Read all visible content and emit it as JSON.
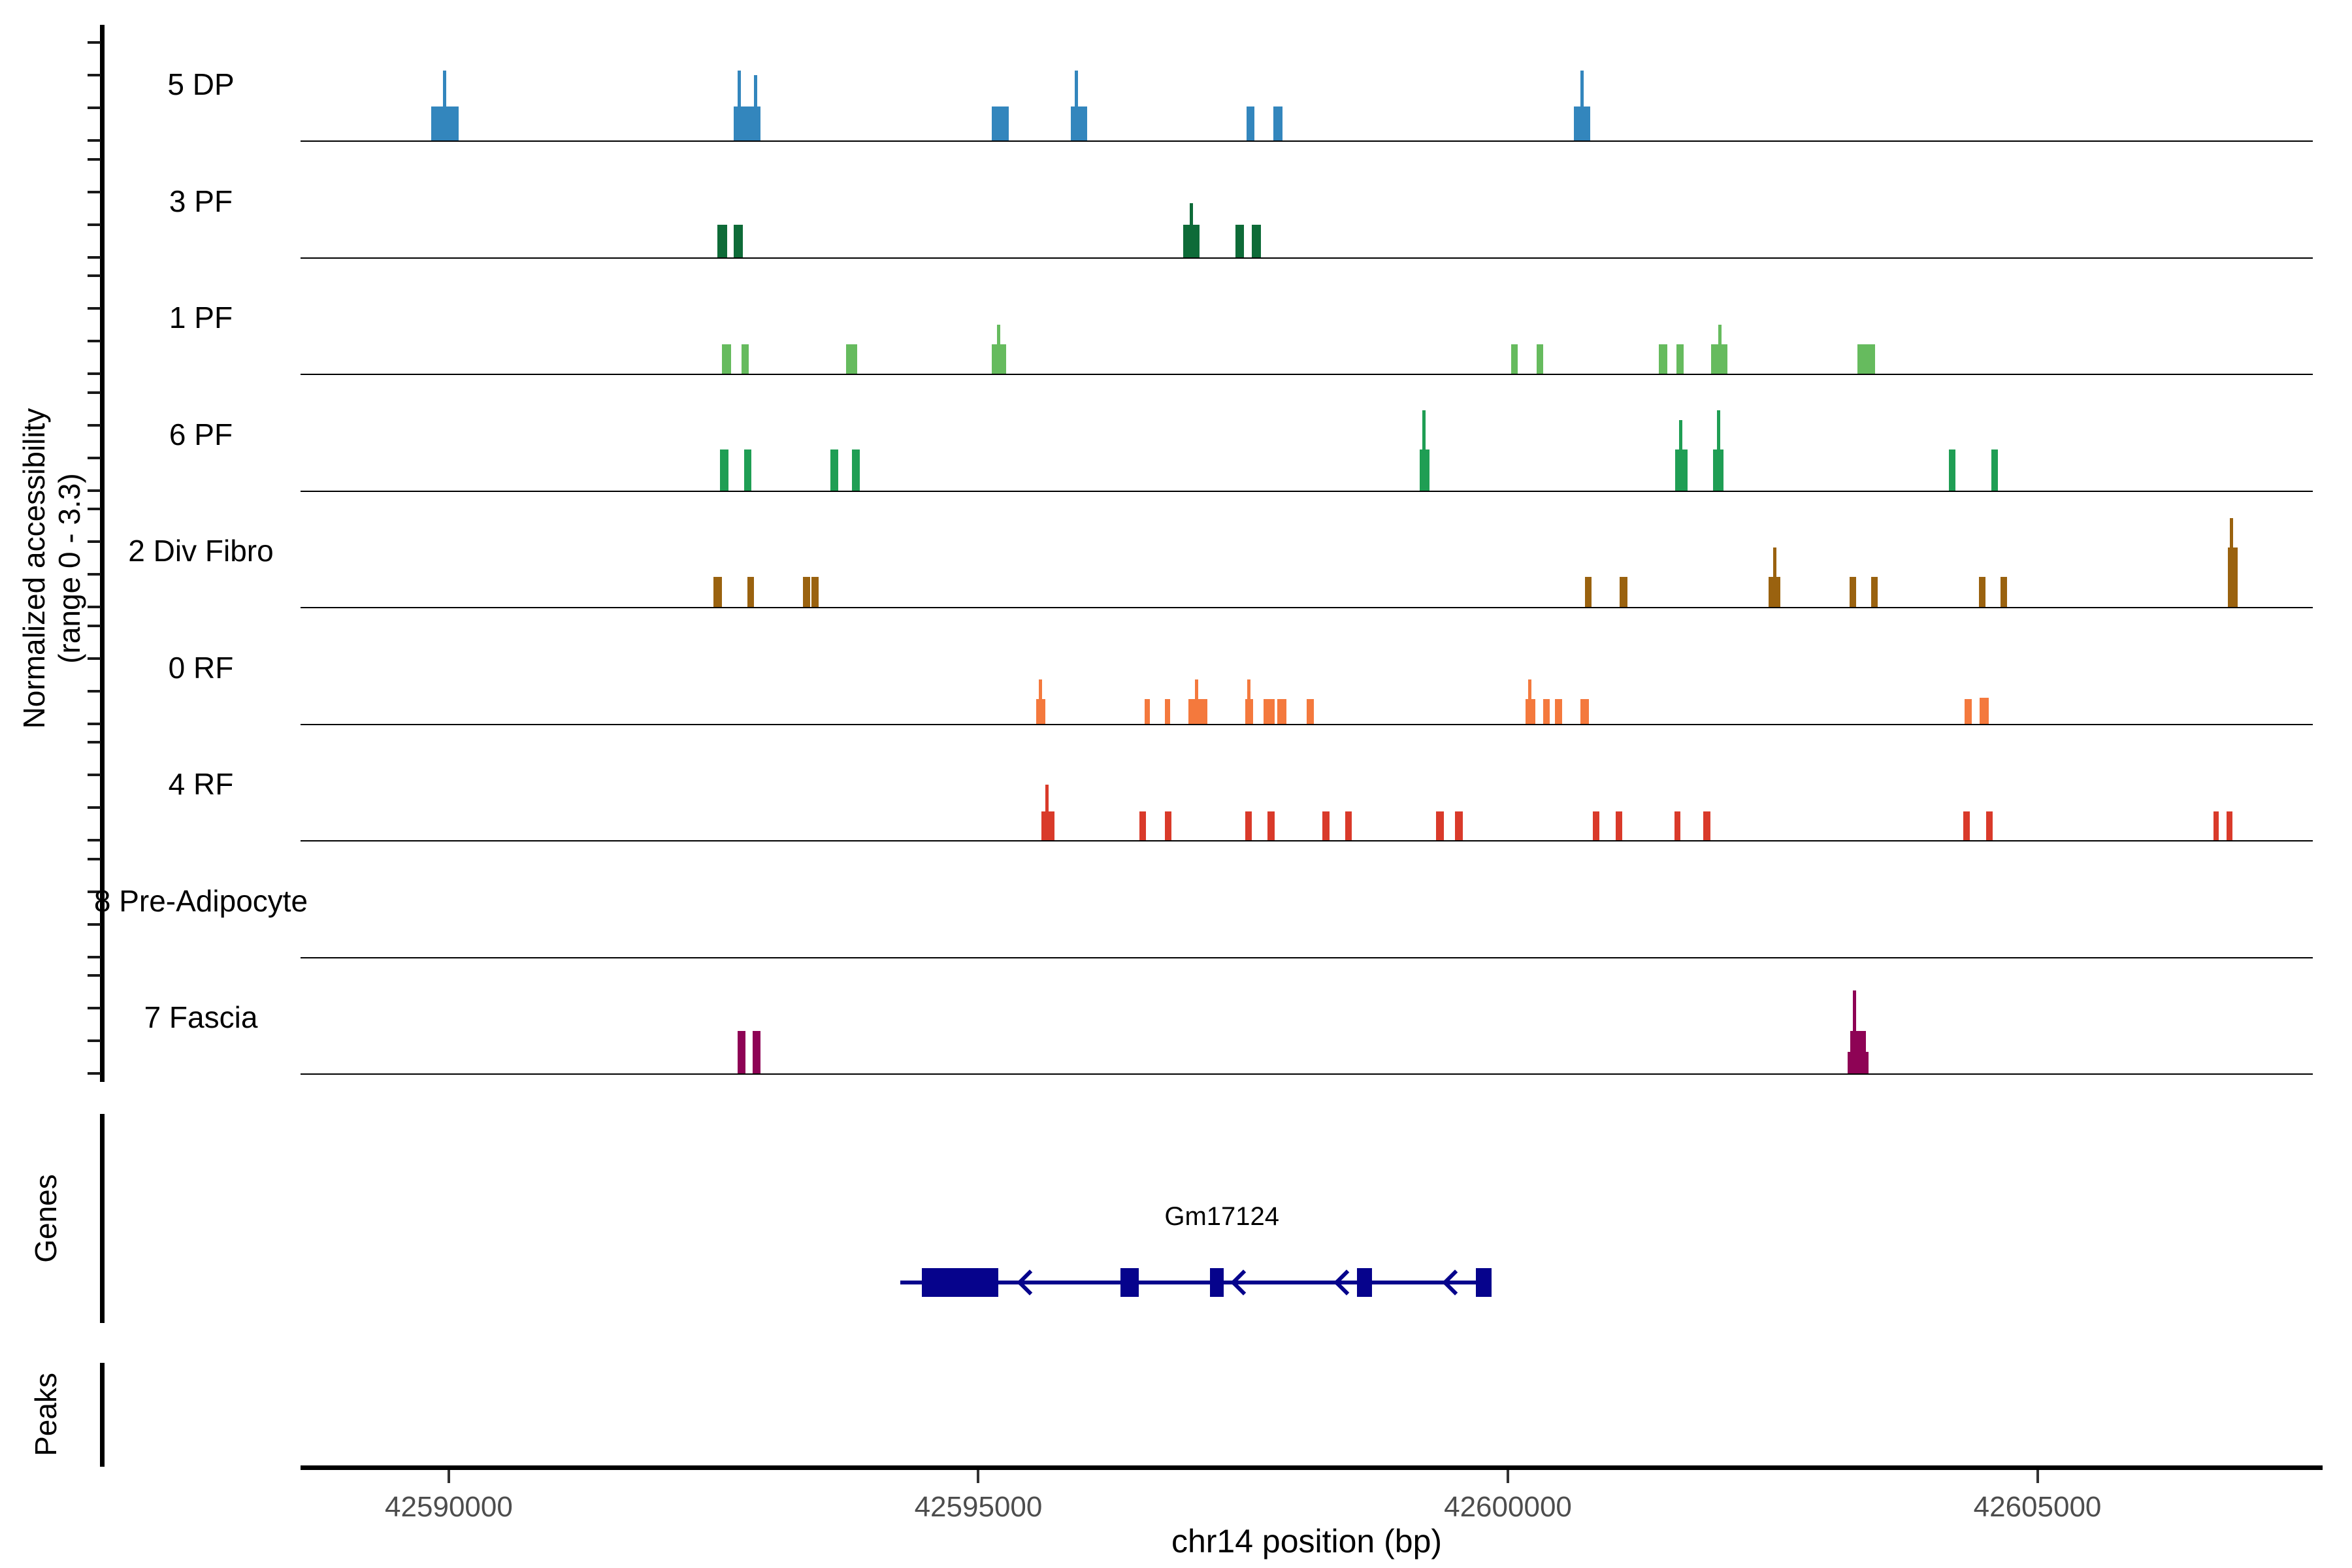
{
  "y_axis": {
    "label_line1": "Normalized accessibility",
    "label_line2": "(range 0 - 3.3)",
    "range_min": 0,
    "range_max": 3.3
  },
  "x_axis": {
    "title": "chr14 position (bp)",
    "chromosome": "chr14",
    "xlim": [
      42588600,
      42607600
    ],
    "ticks": [
      42590000,
      42595000,
      42600000,
      42605000
    ]
  },
  "sections": {
    "genes_label": "Genes",
    "peaks_label": "Peaks"
  },
  "gene": {
    "name": "Gm17124",
    "strand": "-",
    "color": "#06038c",
    "line_start": 42594260,
    "line_end": 42599845,
    "exons": [
      [
        42594464,
        42595191
      ],
      [
        42596342,
        42596514
      ],
      [
        42597185,
        42597315
      ],
      [
        42598577,
        42598719
      ],
      [
        42599697,
        42599845
      ]
    ],
    "arrows_bp": [
      42595486,
      42597499,
      42598478,
      42599500
    ]
  },
  "peaks_track": {
    "items": []
  },
  "chart_data": {
    "type": "genome-tracks",
    "title": "",
    "xlabel": "chr14 position (bp)",
    "ylabel": "Normalized accessibility (range 0 - 3.3)",
    "value_range": [
      0,
      3.3
    ],
    "xlim": [
      42588600,
      42607600
    ],
    "tracks": [
      {
        "label": "5 DP",
        "color": "#3386bd",
        "blocks": [
          [
            42589834,
            42590092,
            1.05
          ],
          [
            42592690,
            42592943,
            1.05
          ],
          [
            42595129,
            42595289,
            1.05
          ],
          [
            42595874,
            42596028,
            1.05
          ],
          [
            42597531,
            42597605,
            1.05
          ],
          [
            42597783,
            42597869,
            1.05
          ],
          [
            42600622,
            42600776,
            1.05
          ]
        ],
        "spikes": [
          [
            42589963,
            2.15
          ],
          [
            42592740,
            2.15
          ],
          [
            42592894,
            2.0
          ],
          [
            42595924,
            2.15
          ],
          [
            42600702,
            2.15
          ]
        ]
      },
      {
        "label": "3 PF",
        "color": "#0e6b38",
        "blocks": [
          [
            42592537,
            42592629,
            1.0
          ],
          [
            42592690,
            42592777,
            1.0
          ],
          [
            42596933,
            42597087,
            1.0
          ],
          [
            42597426,
            42597506,
            1.0
          ],
          [
            42597580,
            42597666,
            1.0
          ]
        ],
        "spikes": [
          [
            42597013,
            1.65
          ]
        ]
      },
      {
        "label": "1 PF",
        "color": "#66bb5e",
        "blocks": [
          [
            42592580,
            42592666,
            0.9
          ],
          [
            42592765,
            42592832,
            0.9
          ],
          [
            42593750,
            42593855,
            0.9
          ],
          [
            42595129,
            42595264,
            0.9
          ],
          [
            42600030,
            42600092,
            0.9
          ],
          [
            42600270,
            42600332,
            0.9
          ],
          [
            42601428,
            42601508,
            0.9
          ],
          [
            42601594,
            42601662,
            0.9
          ],
          [
            42601920,
            42602074,
            0.9
          ],
          [
            42603300,
            42603466,
            0.9
          ]
        ],
        "spikes": [
          [
            42595190,
            1.5
          ],
          [
            42602000,
            1.5
          ]
        ]
      },
      {
        "label": "6 PF",
        "color": "#1f9e54",
        "blocks": [
          [
            42592561,
            42592641,
            1.25
          ],
          [
            42592789,
            42592857,
            1.25
          ],
          [
            42593602,
            42593676,
            1.25
          ],
          [
            42593805,
            42593879,
            1.25
          ],
          [
            42599168,
            42599260,
            1.25
          ],
          [
            42601582,
            42601699,
            1.25
          ],
          [
            42601939,
            42602037,
            1.25
          ],
          [
            42604162,
            42604223,
            1.25
          ],
          [
            42604562,
            42604624,
            1.25
          ]
        ],
        "spikes": [
          [
            42599205,
            2.45
          ],
          [
            42601631,
            2.15
          ],
          [
            42601988,
            2.45
          ]
        ]
      },
      {
        "label": "2 Div Fibro",
        "color": "#9a620f",
        "blocks": [
          [
            42592500,
            42592580,
            0.92
          ],
          [
            42592820,
            42592882,
            0.92
          ],
          [
            42593344,
            42593414,
            0.92
          ],
          [
            42593426,
            42593494,
            0.92
          ],
          [
            42600727,
            42600788,
            0.92
          ],
          [
            42601053,
            42601127,
            0.92
          ],
          [
            42602464,
            42602575,
            0.92
          ],
          [
            42603227,
            42603289,
            0.92
          ],
          [
            42603430,
            42603492,
            0.92
          ],
          [
            42604447,
            42604508,
            0.92
          ],
          [
            42604650,
            42604711,
            0.92
          ],
          [
            42606799,
            42606891,
            1.82
          ]
        ],
        "spikes": [
          [
            42602519,
            1.82
          ],
          [
            42606830,
            2.72
          ]
        ]
      },
      {
        "label": "0 RF",
        "color": "#f4793d",
        "blocks": [
          [
            42595548,
            42595634,
            0.75
          ],
          [
            42596570,
            42596619,
            0.75
          ],
          [
            42596761,
            42596810,
            0.75
          ],
          [
            42596983,
            42597161,
            0.75
          ],
          [
            42597518,
            42597592,
            0.75
          ],
          [
            42597691,
            42597796,
            0.75
          ],
          [
            42597820,
            42597906,
            0.75
          ],
          [
            42598097,
            42598171,
            0.75
          ],
          [
            42600166,
            42600258,
            0.75
          ],
          [
            42600332,
            42600394,
            0.75
          ],
          [
            42600443,
            42600511,
            0.75
          ],
          [
            42600684,
            42600764,
            0.75
          ],
          [
            42604311,
            42604378,
            0.75
          ],
          [
            42604453,
            42604539,
            0.8
          ]
        ],
        "spikes": [
          [
            42595585,
            1.35
          ],
          [
            42597063,
            1.35
          ],
          [
            42597555,
            1.35
          ],
          [
            42600209,
            1.35
          ]
        ]
      },
      {
        "label": "4 RF",
        "color": "#d93a2a",
        "blocks": [
          [
            42595597,
            42595720,
            0.88
          ],
          [
            42596521,
            42596582,
            0.88
          ],
          [
            42596761,
            42596823,
            0.88
          ],
          [
            42597518,
            42597580,
            0.88
          ],
          [
            42597728,
            42597796,
            0.88
          ],
          [
            42598251,
            42598313,
            0.88
          ],
          [
            42598466,
            42598528,
            0.88
          ],
          [
            42599322,
            42599396,
            0.88
          ],
          [
            42599500,
            42599574,
            0.88
          ],
          [
            42600800,
            42600862,
            0.88
          ],
          [
            42601015,
            42601077,
            0.88
          ],
          [
            42601570,
            42601631,
            0.88
          ],
          [
            42601847,
            42601914,
            0.88
          ],
          [
            42604298,
            42604360,
            0.88
          ],
          [
            42604514,
            42604575,
            0.88
          ],
          [
            42606663,
            42606712,
            0.88
          ],
          [
            42606786,
            42606841,
            0.88
          ]
        ],
        "spikes": [
          [
            42595646,
            1.7
          ]
        ]
      },
      {
        "label": "8 Pre-Adipocyte",
        "color": "#b3b3b3",
        "blocks": [],
        "spikes": []
      },
      {
        "label": "7 Fascia",
        "color": "#8e0355",
        "blocks": [
          [
            42592727,
            42592801,
            1.3
          ],
          [
            42592869,
            42592943,
            1.3
          ],
          [
            42603209,
            42603406,
            0.66
          ],
          [
            42603233,
            42603382,
            1.3
          ]
        ],
        "spikes": [
          [
            42603270,
            2.55
          ]
        ]
      }
    ]
  }
}
